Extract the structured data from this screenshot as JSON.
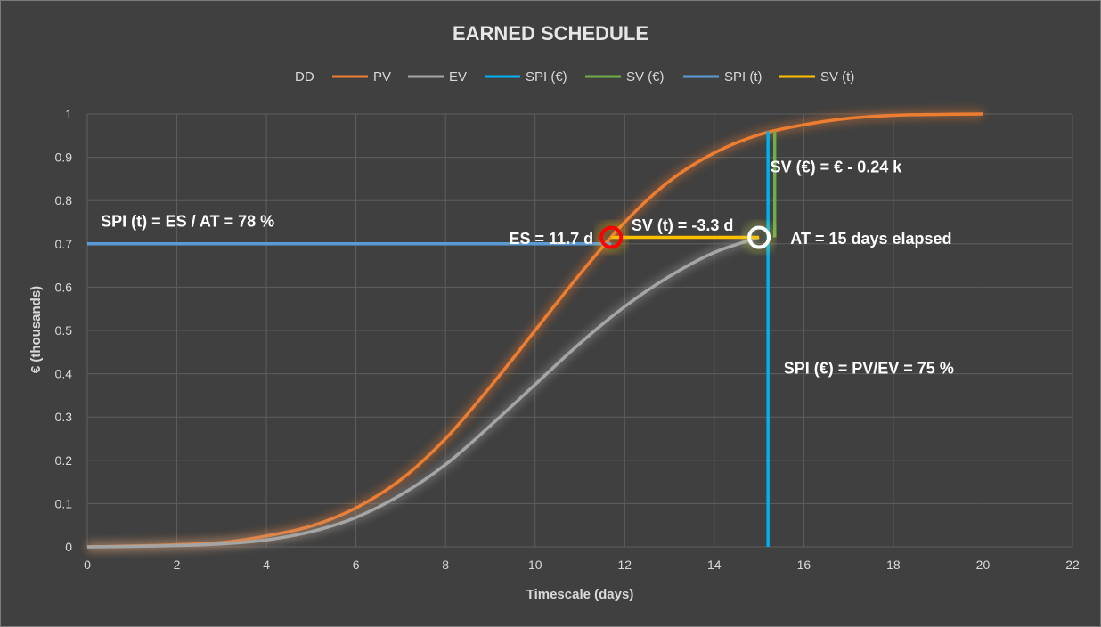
{
  "chart_data": {
    "type": "line",
    "title": "EARNED SCHEDULE",
    "xlabel": "Timescale (days)",
    "ylabel": "€ (thousands)",
    "xlim": [
      0,
      22
    ],
    "ylim": [
      0,
      1
    ],
    "x_ticks": [
      "0",
      "2",
      "4",
      "6",
      "8",
      "10",
      "12",
      "14",
      "16",
      "18",
      "20",
      "22"
    ],
    "y_ticks": [
      "0",
      "0.1",
      "0.2",
      "0.3",
      "0.4",
      "0.5",
      "0.6",
      "0.7",
      "0.8",
      "0.9",
      "1"
    ],
    "grid": true,
    "legend_position": "top",
    "legend": [
      {
        "name": "DD",
        "color": "none"
      },
      {
        "name": "PV",
        "color": "#ed7d31"
      },
      {
        "name": "EV",
        "color": "#a5a5a5"
      },
      {
        "name": "SPI (€)",
        "color": "#00b0f0"
      },
      {
        "name": "SV (€)",
        "color": "#70ad47"
      },
      {
        "name": "SPI (t)",
        "color": "#5b9bd5"
      },
      {
        "name": "SV (t)",
        "color": "#ffc000"
      }
    ],
    "series": [
      {
        "name": "PV",
        "color": "#ed7d31",
        "x": [
          0,
          1,
          2,
          3,
          4,
          5,
          6,
          7,
          8,
          9,
          10,
          11,
          12,
          13,
          14,
          15,
          16,
          17,
          18,
          19,
          20
        ],
        "y": [
          0.0,
          0.002,
          0.005,
          0.01,
          0.025,
          0.048,
          0.09,
          0.155,
          0.25,
          0.37,
          0.5,
          0.63,
          0.75,
          0.845,
          0.91,
          0.952,
          0.975,
          0.99,
          0.997,
          0.999,
          1.0
        ]
      },
      {
        "name": "EV",
        "color": "#a5a5a5",
        "x": [
          0,
          1,
          2,
          3,
          4,
          5,
          6,
          7,
          8,
          9,
          10,
          11,
          12,
          13,
          14,
          15
        ],
        "y": [
          0.0,
          0.001,
          0.003,
          0.007,
          0.016,
          0.035,
          0.068,
          0.12,
          0.19,
          0.28,
          0.375,
          0.47,
          0.555,
          0.625,
          0.68,
          0.715
        ]
      },
      {
        "name": "SPI (t)",
        "color": "#5b9bd5",
        "x": [
          0,
          11.7
        ],
        "y": [
          0.7,
          0.7
        ]
      },
      {
        "name": "SV (t)",
        "color": "#ffc000",
        "x": [
          11.7,
          15
        ],
        "y": [
          0.715,
          0.715
        ]
      },
      {
        "name": "SPI (€)",
        "color": "#00b0f0",
        "x": [
          15.2,
          15.2
        ],
        "y": [
          0,
          0.96
        ]
      },
      {
        "name": "SV (€)",
        "color": "#70ad47",
        "x": [
          15.35,
          15.35
        ],
        "y": [
          0.715,
          0.96
        ]
      }
    ],
    "markers": [
      {
        "name": "ES",
        "x": 11.7,
        "y": 0.715,
        "color": "#ff0000"
      },
      {
        "name": "AT",
        "x": 15,
        "y": 0.715,
        "color": "#ffffff"
      }
    ],
    "annotations": [
      {
        "text": "SPI (t) = ES / AT = 78 %",
        "x": 0.3,
        "y": 0.74,
        "anchor": "start"
      },
      {
        "text": "ES = 11.7 d",
        "x": 11.3,
        "y": 0.7,
        "anchor": "end"
      },
      {
        "text": "SV (t) = -3.3 d",
        "x": 12.15,
        "y": 0.73,
        "anchor": "start"
      },
      {
        "text": "AT = 15 days elapsed",
        "x": 15.7,
        "y": 0.7,
        "anchor": "start"
      },
      {
        "text": "SV (€) = € - 0.24 k",
        "x": 15.25,
        "y": 0.865,
        "anchor": "start"
      },
      {
        "text": "SPI (€) = PV/EV = 75 %",
        "x": 15.55,
        "y": 0.4,
        "anchor": "start"
      }
    ]
  }
}
